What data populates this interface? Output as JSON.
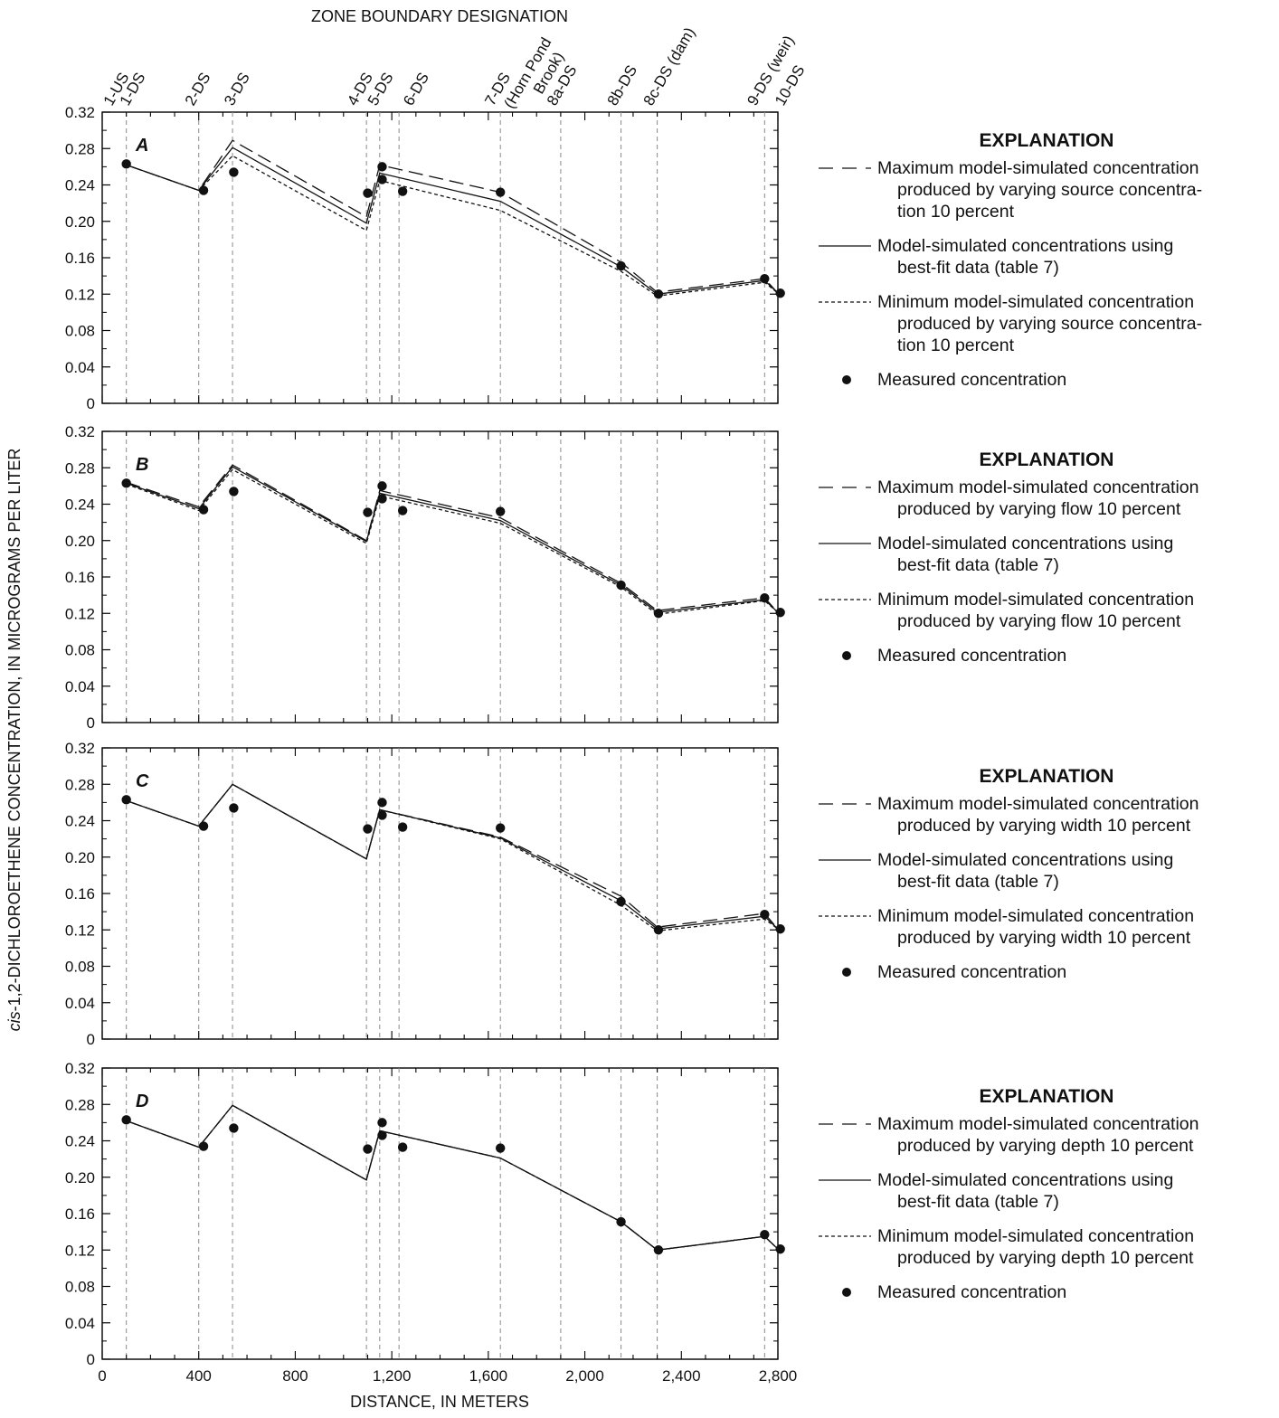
{
  "figure": {
    "top_axis_title": "ZONE BOUNDARY DESIGNATION",
    "xlabel": "DISTANCE, IN METERS",
    "ylabel_italic": "cis",
    "ylabel_rest": "-1,2-DICHLOROETHENE CONCENTRATION, IN MICROGRAMS PER LITER"
  },
  "chart_data": {
    "type": "line",
    "xlim": [
      0,
      2800
    ],
    "ylim": [
      0,
      0.32
    ],
    "x_ticks": [
      0,
      400,
      800,
      1200,
      1600,
      2000,
      2400,
      2800
    ],
    "x_tick_labels": [
      "0",
      "400",
      "800",
      "1,200",
      "1,600",
      "2,000",
      "2,400",
      "2,800"
    ],
    "y_ticks": [
      0,
      0.04,
      0.08,
      0.12,
      0.16,
      0.2,
      0.24,
      0.28,
      0.32
    ],
    "y_tick_labels": [
      "0",
      "0.04",
      "0.08",
      "0.12",
      "0.16",
      "0.20",
      "0.24",
      "0.28",
      "0.32"
    ],
    "grid": false,
    "legend_placement": "right",
    "zone_boundaries": [
      {
        "x": 100,
        "label": "1-US"
      },
      {
        "x": 100,
        "label": "1-DS"
      },
      {
        "x": 400,
        "label": "2-DS"
      },
      {
        "x": 540,
        "label": "3-DS"
      },
      {
        "x": 1095,
        "label": "4-DS"
      },
      {
        "x": 1150,
        "label": "5-DS"
      },
      {
        "x": 1230,
        "label": "6-DS"
      },
      {
        "x": 1650,
        "label": "7-DS (Horn Pond Brook)"
      },
      {
        "x": 1900,
        "label": "8a-DS"
      },
      {
        "x": 2150,
        "label": "8b-DS"
      },
      {
        "x": 2300,
        "label": "8c-DS (dam)"
      },
      {
        "x": 2745,
        "label": "9-DS (weir)"
      },
      {
        "x": 2800,
        "label": "10-DS"
      }
    ],
    "panels": [
      {
        "letter": "A",
        "series": [
          {
            "name": "Maximum model-simulated concentration produced by varying source concentration 10 percent",
            "style": "long-dash",
            "x": [
              100,
              400,
              540,
              1095,
              1150,
              1650,
              2150,
              2300,
              2745,
              2800
            ],
            "y": [
              0.262,
              0.234,
              0.289,
              0.205,
              0.262,
              0.232,
              0.155,
              0.122,
              0.137,
              0.121
            ]
          },
          {
            "name": "Model-simulated concentrations using best-fit data (table 7)",
            "style": "solid",
            "x": [
              100,
              400,
              540,
              1095,
              1150,
              1650,
              2150,
              2300,
              2745,
              2800
            ],
            "y": [
              0.262,
              0.234,
              0.281,
              0.198,
              0.253,
              0.222,
              0.15,
              0.12,
              0.135,
              0.121
            ]
          },
          {
            "name": "Minimum model-simulated concentration produced by varying source concentration 10 percent",
            "style": "short-dash",
            "x": [
              100,
              400,
              540,
              1095,
              1150,
              1650,
              2150,
              2300,
              2745,
              2800
            ],
            "y": [
              0.262,
              0.234,
              0.272,
              0.19,
              0.245,
              0.212,
              0.145,
              0.118,
              0.133,
              0.121
            ]
          },
          {
            "name": "Measured concentration",
            "style": "points",
            "x": [
              100,
              420,
              545,
              1100,
              1160,
              1160,
              1245,
              1650,
              2150,
              2305,
              2745,
              2810
            ],
            "y": [
              0.263,
              0.234,
              0.254,
              0.231,
              0.26,
              0.246,
              0.233,
              0.232,
              0.151,
              0.12,
              0.137,
              0.121
            ]
          }
        ],
        "explanation": {
          "title": "EXPLANATION",
          "max_lines": [
            "Maximum model-simulated concentration",
            "produced by varying source concentra-",
            "tion 10 percent"
          ],
          "best_lines": [
            "Model-simulated concentrations using",
            "best-fit data (table 7)"
          ],
          "min_lines": [
            "Minimum model-simulated concentration",
            "produced by varying source concentra-",
            "tion 10 percent"
          ],
          "measured": "Measured concentration"
        }
      },
      {
        "letter": "B",
        "series": [
          {
            "name": "Maximum model-simulated concentration produced by varying flow 10 percent",
            "style": "long-dash",
            "x": [
              100,
              400,
              540,
              1095,
              1150,
              1650,
              2150,
              2300,
              2745,
              2800
            ],
            "y": [
              0.264,
              0.237,
              0.283,
              0.2,
              0.255,
              0.225,
              0.153,
              0.123,
              0.137,
              0.121
            ]
          },
          {
            "name": "Model-simulated concentrations using best-fit data (table 7)",
            "style": "solid",
            "x": [
              100,
              400,
              540,
              1095,
              1150,
              1650,
              2150,
              2300,
              2745,
              2800
            ],
            "y": [
              0.263,
              0.235,
              0.281,
              0.199,
              0.252,
              0.222,
              0.151,
              0.121,
              0.135,
              0.121
            ]
          },
          {
            "name": "Minimum model-simulated concentration produced by varying flow 10 percent",
            "style": "short-dash",
            "x": [
              100,
              400,
              540,
              1095,
              1150,
              1650,
              2150,
              2300,
              2745,
              2800
            ],
            "y": [
              0.262,
              0.233,
              0.278,
              0.197,
              0.249,
              0.219,
              0.149,
              0.119,
              0.134,
              0.121
            ]
          },
          {
            "name": "Measured concentration",
            "style": "points",
            "x": [
              100,
              420,
              545,
              1100,
              1160,
              1160,
              1245,
              1650,
              2150,
              2305,
              2745,
              2810
            ],
            "y": [
              0.263,
              0.234,
              0.254,
              0.231,
              0.26,
              0.246,
              0.233,
              0.232,
              0.151,
              0.12,
              0.137,
              0.121
            ]
          }
        ],
        "explanation": {
          "title": "EXPLANATION",
          "max_lines": [
            "Maximum model-simulated concentration",
            "produced by varying flow 10 percent"
          ],
          "best_lines": [
            "Model-simulated concentrations using",
            "best-fit data (table 7)"
          ],
          "min_lines": [
            "Minimum model-simulated concentration",
            "produced by varying flow 10 percent"
          ],
          "measured": "Measured concentration"
        }
      },
      {
        "letter": "C",
        "series": [
          {
            "name": "Maximum model-simulated concentration produced by varying width 10 percent",
            "style": "long-dash",
            "x": [
              100,
              400,
              540,
              1095,
              1150,
              1650,
              2150,
              2300,
              2745,
              2800
            ],
            "y": [
              0.262,
              0.234,
              0.28,
              0.198,
              0.252,
              0.222,
              0.157,
              0.123,
              0.138,
              0.121
            ]
          },
          {
            "name": "Model-simulated concentrations using best-fit data (table 7)",
            "style": "solid",
            "x": [
              100,
              400,
              540,
              1095,
              1150,
              1650,
              2150,
              2300,
              2745,
              2800
            ],
            "y": [
              0.262,
              0.234,
              0.28,
              0.198,
              0.252,
              0.221,
              0.152,
              0.121,
              0.135,
              0.121
            ]
          },
          {
            "name": "Minimum model-simulated concentration produced by varying width 10 percent",
            "style": "short-dash",
            "x": [
              100,
              400,
              540,
              1095,
              1150,
              1650,
              2150,
              2300,
              2745,
              2800
            ],
            "y": [
              0.262,
              0.234,
              0.28,
              0.198,
              0.252,
              0.22,
              0.147,
              0.119,
              0.132,
              0.121
            ]
          },
          {
            "name": "Measured concentration",
            "style": "points",
            "x": [
              100,
              420,
              545,
              1100,
              1160,
              1160,
              1245,
              1650,
              2150,
              2305,
              2745,
              2810
            ],
            "y": [
              0.263,
              0.234,
              0.254,
              0.231,
              0.26,
              0.246,
              0.233,
              0.232,
              0.151,
              0.12,
              0.137,
              0.121
            ]
          }
        ],
        "explanation": {
          "title": "EXPLANATION",
          "max_lines": [
            "Maximum model-simulated concentration",
            "produced by varying width 10 percent"
          ],
          "best_lines": [
            "Model-simulated concentrations using",
            "best-fit data (table 7)"
          ],
          "min_lines": [
            "Minimum model-simulated concentration",
            "produced by varying width 10 percent"
          ],
          "measured": "Measured concentration"
        }
      },
      {
        "letter": "D",
        "series": [
          {
            "name": "Maximum model-simulated concentration produced by varying depth 10 percent",
            "style": "long-dash",
            "x": [
              100,
              400,
              540,
              1095,
              1150,
              1650,
              2150,
              2300,
              2745,
              2800
            ],
            "y": [
              0.262,
              0.233,
              0.279,
              0.197,
              0.251,
              0.221,
              0.151,
              0.12,
              0.135,
              0.121
            ]
          },
          {
            "name": "Model-simulated concentrations using best-fit data (table 7)",
            "style": "solid",
            "x": [
              100,
              400,
              540,
              1095,
              1150,
              1650,
              2150,
              2300,
              2745,
              2800
            ],
            "y": [
              0.262,
              0.233,
              0.279,
              0.197,
              0.251,
              0.221,
              0.151,
              0.12,
              0.135,
              0.121
            ]
          },
          {
            "name": "Minimum model-simulated concentration produced by varying depth 10 percent",
            "style": "short-dash",
            "x": [
              100,
              400,
              540,
              1095,
              1150,
              1650,
              2150,
              2300,
              2745,
              2800
            ],
            "y": [
              0.262,
              0.233,
              0.279,
              0.197,
              0.251,
              0.221,
              0.151,
              0.12,
              0.135,
              0.121
            ]
          },
          {
            "name": "Measured concentration",
            "style": "points",
            "x": [
              100,
              420,
              545,
              1100,
              1160,
              1160,
              1245,
              1650,
              2150,
              2305,
              2745,
              2810
            ],
            "y": [
              0.263,
              0.234,
              0.254,
              0.231,
              0.26,
              0.246,
              0.233,
              0.232,
              0.151,
              0.12,
              0.137,
              0.121
            ]
          }
        ],
        "explanation": {
          "title": "EXPLANATION",
          "max_lines": [
            "Maximum model-simulated concentration",
            "produced by varying depth 10 percent"
          ],
          "best_lines": [
            "Model-simulated concentrations using",
            "best-fit data (table 7)"
          ],
          "min_lines": [
            "Minimum model-simulated concentration",
            "produced by varying depth 10 percent"
          ],
          "measured": "Measured concentration"
        }
      }
    ]
  }
}
